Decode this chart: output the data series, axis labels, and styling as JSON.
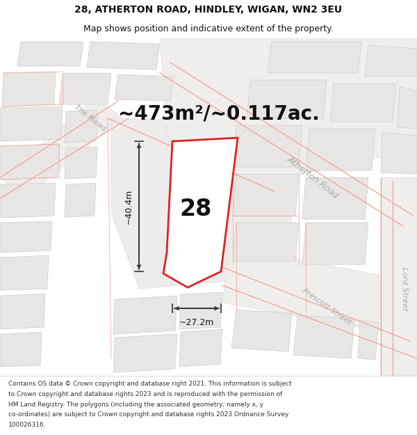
{
  "title_line1": "28, ATHERTON ROAD, HINDLEY, WIGAN, WN2 3EU",
  "title_line2": "Map shows position and indicative extent of the property.",
  "area_text": "~473m²/~0.117ac.",
  "label_28": "28",
  "dim_width": "~27.2m",
  "dim_height": "~40.4m",
  "road_atherton": "Atherton Road",
  "road_prescott": "Prescott Street",
  "road_lord": "Lord Street",
  "road_mews": "The Mews",
  "footer_lines": [
    "Contains OS data © Crown copyright and database right 2021. This information is subject",
    "to Crown copyright and database rights 2023 and is reproduced with the permission of",
    "HM Land Registry. The polygons (including the associated geometry, namely x, y",
    "co-ordinates) are subject to Crown copyright and database rights 2023 Ordnance Survey",
    "100026316."
  ],
  "map_bg": "#f7f5f5",
  "plot_fill": "#ffffff",
  "plot_edge": "#dd2222",
  "road_outline_color": "#f0a090",
  "building_fill": "#e8e6e4",
  "building_edge": "#d0ceca",
  "road_area_fill": "#f0eeed",
  "dim_line_color": "#333333",
  "text_color": "#111111",
  "road_text_color": "#aaaaaa",
  "title_fontsize": 10,
  "subtitle_fontsize": 9,
  "area_fontsize": 20,
  "label_fontsize": 24,
  "dim_fontsize": 9,
  "road_label_fontsize": 9,
  "footer_fontsize": 6.5
}
